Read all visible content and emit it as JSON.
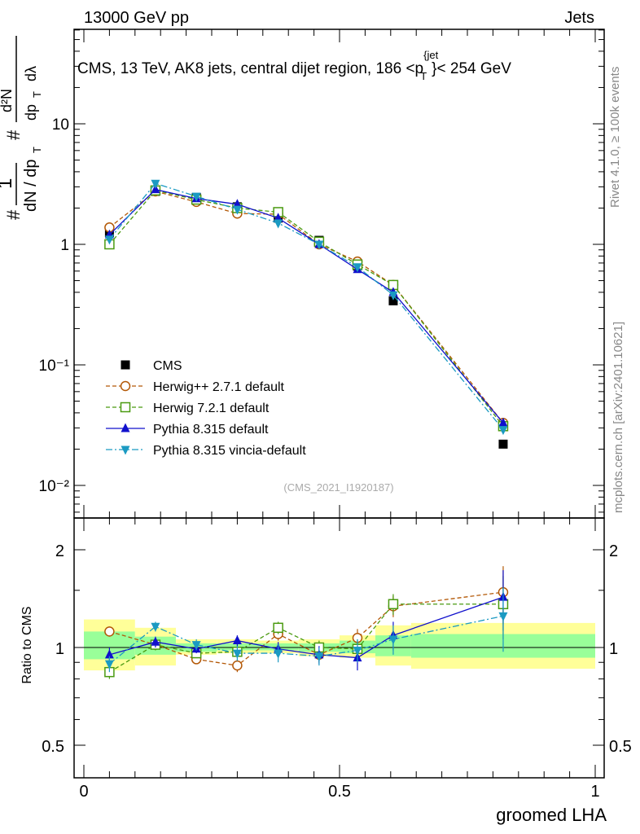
{
  "header": {
    "left": "13000 GeV pp",
    "right": "Jets",
    "title": "CMS, 13 TeV, AK8 jets, central dijet region, 186 <p",
    "title_sup": "{jet",
    "title_sub": "T",
    "title_tail": "}< 254 GeV",
    "analysis_tag": "(CMS_2021_I1920187)"
  },
  "side_labels": {
    "rivet": "Rivet 4.1.0, ≥ 100k events",
    "mcplots": "mcplots.cern.ch [arXiv:2401.10621]"
  },
  "axes": {
    "ylabel_main_parts": [
      "#",
      "1",
      "dN / dp",
      "T",
      "#",
      "d²N",
      "dp",
      "T",
      "dλ"
    ],
    "ylabel_ratio": "Ratio to CMS",
    "xlabel": "groomed LHA",
    "main_ticks": [
      "10⁻²",
      "10⁻¹",
      "1",
      "10"
    ],
    "ratio_ticks": [
      "0.5",
      "1",
      "2"
    ],
    "x_ticks": [
      "0",
      "0.5",
      "1"
    ]
  },
  "colors": {
    "cms": "#000000",
    "herwigpp": "#b35806",
    "herwig7": "#4a9a10",
    "pythia": "#1010cc",
    "vincia": "#1b9ac2",
    "band_outer": "#ffff99",
    "band_inner": "#99ff99"
  },
  "chart_data": {
    "type": "line",
    "x_range": [
      0,
      1
    ],
    "main": {
      "scale": "log",
      "ylim": [
        0.006,
        60
      ]
    },
    "ratio": {
      "scale": "log",
      "ylim": [
        0.4,
        2.4
      ]
    },
    "x": [
      0.05,
      0.14,
      0.22,
      0.3,
      0.38,
      0.46,
      0.535,
      0.605,
      0.82
    ],
    "bands": [
      {
        "x0": 0.0,
        "x1": 0.1,
        "outer": [
          0.85,
          1.22
        ],
        "inner": [
          0.92,
          1.12
        ]
      },
      {
        "x0": 0.1,
        "x1": 0.18,
        "outer": [
          0.88,
          1.15
        ],
        "inner": [
          0.95,
          1.08
        ]
      },
      {
        "x0": 0.18,
        "x1": 0.26,
        "outer": [
          0.95,
          1.06
        ],
        "inner": [
          0.97,
          1.03
        ]
      },
      {
        "x0": 0.26,
        "x1": 0.34,
        "outer": [
          0.96,
          1.06
        ],
        "inner": [
          0.98,
          1.03
        ]
      },
      {
        "x0": 0.34,
        "x1": 0.42,
        "outer": [
          0.96,
          1.05
        ],
        "inner": [
          0.98,
          1.03
        ]
      },
      {
        "x0": 0.42,
        "x1": 0.5,
        "outer": [
          0.94,
          1.06
        ],
        "inner": [
          0.97,
          1.03
        ]
      },
      {
        "x0": 0.5,
        "x1": 0.57,
        "outer": [
          0.93,
          1.09
        ],
        "inner": [
          0.96,
          1.05
        ]
      },
      {
        "x0": 0.57,
        "x1": 0.64,
        "outer": [
          0.88,
          1.17
        ],
        "inner": [
          0.94,
          1.09
        ]
      },
      {
        "x0": 0.64,
        "x1": 1.0,
        "outer": [
          0.86,
          1.19
        ],
        "inner": [
          0.93,
          1.1
        ]
      }
    ],
    "series": [
      {
        "key": "cms",
        "name": "CMS",
        "marker": "square-filled",
        "dash": "none",
        "main": [
          1.25,
          2.75,
          2.45,
          2.05,
          1.65,
          1.08,
          0.66,
          0.34,
          0.022
        ],
        "ratio": null
      },
      {
        "key": "herwigpp",
        "name": "Herwig++ 2.7.1 default",
        "marker": "circle-open",
        "dash": "5,3",
        "main": [
          1.38,
          2.75,
          2.25,
          1.8,
          1.78,
          1.0,
          0.72,
          0.46,
          0.033
        ],
        "ratio": [
          1.12,
          1.02,
          0.92,
          0.88,
          1.1,
          0.95,
          1.07,
          1.34,
          1.48
        ],
        "ratio_err": [
          0.04,
          0.04,
          0.03,
          0.04,
          0.05,
          0.05,
          0.07,
          0.1,
          0.3
        ]
      },
      {
        "key": "herwig7",
        "name": "Herwig 7.2.1 default",
        "marker": "square-open",
        "dash": "5,3",
        "main": [
          1.0,
          2.8,
          2.35,
          2.0,
          1.85,
          1.05,
          0.68,
          0.46,
          0.031
        ],
        "ratio": [
          0.84,
          1.02,
          0.96,
          0.97,
          1.15,
          1.0,
          0.99,
          1.36,
          1.36
        ],
        "ratio_err": [
          0.04,
          0.04,
          0.03,
          0.04,
          0.05,
          0.05,
          0.07,
          0.1,
          0.3
        ]
      },
      {
        "key": "pythia",
        "name": "Pythia 8.315 default",
        "marker": "triangle-up",
        "dash": "none",
        "main": [
          1.2,
          2.85,
          2.4,
          2.15,
          1.65,
          1.0,
          0.62,
          0.4,
          0.033
        ],
        "ratio": [
          0.95,
          1.04,
          0.99,
          1.05,
          0.99,
          0.95,
          0.93,
          1.09,
          1.43
        ],
        "ratio_err": [
          0.05,
          0.04,
          0.03,
          0.04,
          0.05,
          0.06,
          0.08,
          0.11,
          0.3
        ]
      },
      {
        "key": "vincia",
        "name": "Pythia 8.315 vincia-default",
        "marker": "triangle-down",
        "dash": "8,3,2,3",
        "main": [
          1.1,
          3.2,
          2.5,
          1.95,
          1.5,
          1.0,
          0.65,
          0.38,
          0.029
        ],
        "ratio": [
          0.89,
          1.16,
          1.02,
          0.96,
          0.96,
          0.94,
          0.98,
          1.06,
          1.25
        ],
        "ratio_err": [
          0.05,
          0.04,
          0.04,
          0.05,
          0.06,
          0.06,
          0.08,
          0.11,
          0.28
        ]
      }
    ]
  }
}
